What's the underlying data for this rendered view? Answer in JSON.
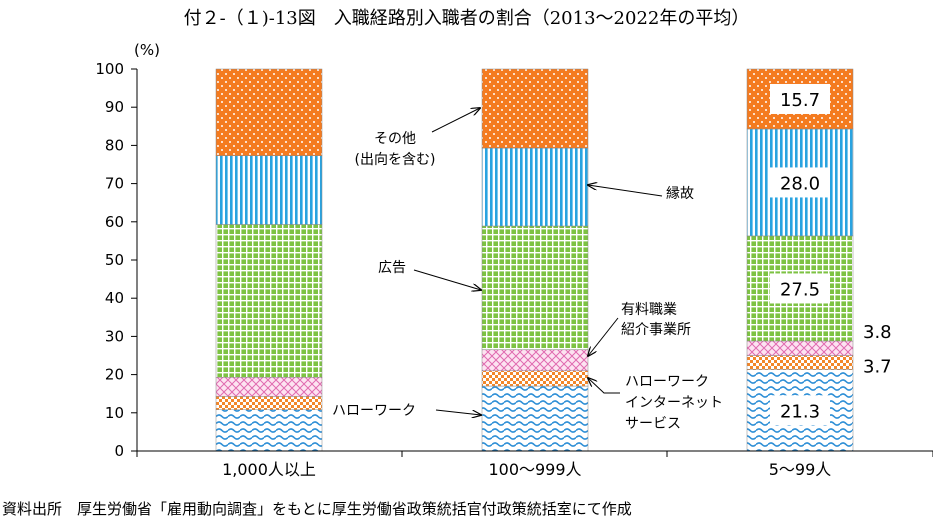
{
  "title": "付２-（１)-13図　入職経路別入職者の割合（2013～2022年の平均）",
  "source": "資料出所　厚生労働省「雇用動向調査」をもとに厚生労働省政策統括官付政策統括室にて作成",
  "chart_data": {
    "type": "bar",
    "stacked": true,
    "ylabel": "(%)",
    "ylim": [
      0,
      100
    ],
    "yticks": [
      "0",
      "10",
      "20",
      "30",
      "40",
      "50",
      "60",
      "70",
      "80",
      "90",
      "100"
    ],
    "categories": [
      "1,000人以上",
      "100～999人",
      "5～99人"
    ],
    "series": [
      {
        "key": "hellowork",
        "color": "#2e8fd6",
        "values": [
          10.8,
          17.0,
          21.3
        ]
      },
      {
        "key": "internet",
        "color": "#f2872a",
        "values": [
          3.5,
          4.0,
          3.7
        ]
      },
      {
        "key": "private",
        "color": "#e78ac3",
        "values": [
          5.0,
          5.5,
          3.8
        ]
      },
      {
        "key": "ad",
        "color": "#7dc242",
        "values": [
          40.0,
          32.4,
          27.5
        ]
      },
      {
        "key": "connection",
        "color": "#29a3e0",
        "values": [
          18.0,
          20.4,
          28.0
        ]
      },
      {
        "key": "other",
        "color": "#f47b20",
        "values": [
          22.7,
          20.7,
          15.7
        ]
      }
    ],
    "data_labels": {
      "hellowork": "21.3",
      "internet": "3.7",
      "private": "3.8",
      "ad": "27.5",
      "connection": "28.0",
      "other": "15.7"
    },
    "annotations": {
      "other": [
        "その他",
        "(出向を含む)"
      ],
      "connection": [
        "縁故"
      ],
      "ad": [
        "広告"
      ],
      "private": [
        "有料職業",
        "紹介事業所"
      ],
      "internet": [
        "ハローワーク",
        "インターネット",
        "サービス"
      ],
      "hellowork": [
        "ハローワーク"
      ]
    }
  }
}
